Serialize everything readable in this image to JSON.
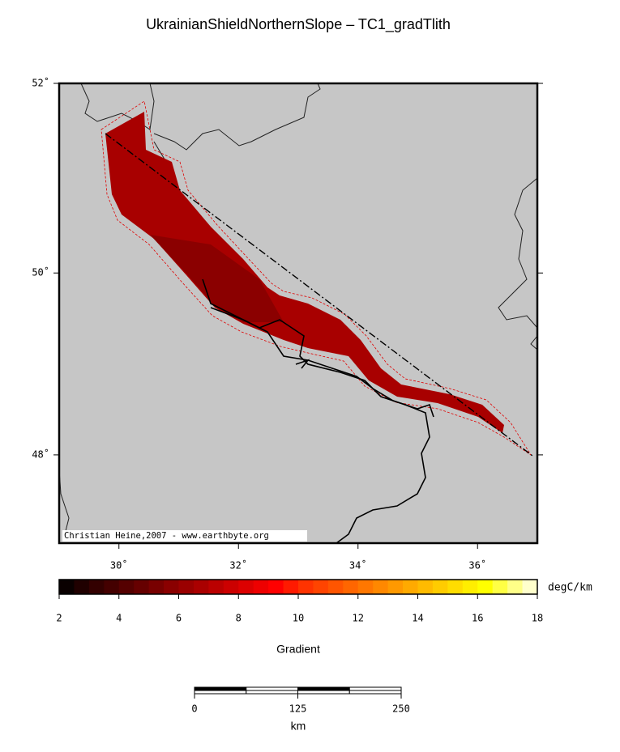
{
  "chart_data": {
    "type": "map",
    "title": "UkrainianShieldNorthernSlope – TC1_gradTlith",
    "xlim": [
      29,
      37
    ],
    "ylim": [
      47,
      52
    ],
    "xticks": [
      {
        "value": 30,
        "label": "30˚"
      },
      {
        "value": 32,
        "label": "32˚"
      },
      {
        "value": 34,
        "label": "34˚"
      },
      {
        "value": 36,
        "label": "36˚"
      }
    ],
    "yticks": [
      {
        "value": 48,
        "label": "48˚"
      },
      {
        "value": 50,
        "label": "50˚"
      },
      {
        "value": 52,
        "label": "52˚"
      }
    ],
    "credit": "Christian Heine,2007 - www.earthbyte.org",
    "colorbar": {
      "label": "Gradient",
      "unit": "degC/km",
      "lim": [
        2,
        18
      ],
      "ticks": [
        2,
        4,
        6,
        8,
        10,
        12,
        14,
        16,
        18
      ],
      "colors": [
        "#0a0000",
        "#200000",
        "#330000",
        "#440000",
        "#550000",
        "#660000",
        "#780000",
        "#8a0000",
        "#9a0000",
        "#aa0000",
        "#bb0000",
        "#cc0000",
        "#dd0000",
        "#ee0000",
        "#ff0000",
        "#ff1a00",
        "#ff3300",
        "#ff4400",
        "#ff5500",
        "#ff6600",
        "#ff7700",
        "#ff8800",
        "#ff9900",
        "#ffaa00",
        "#ffbb00",
        "#ffcc00",
        "#ffdd00",
        "#ffee00",
        "#ffff00",
        "#ffff44",
        "#ffff88",
        "#ffffcc"
      ]
    },
    "scalebar": {
      "unit": "km",
      "lim": [
        0,
        250
      ],
      "ticks": [
        0,
        125,
        250
      ]
    }
  }
}
